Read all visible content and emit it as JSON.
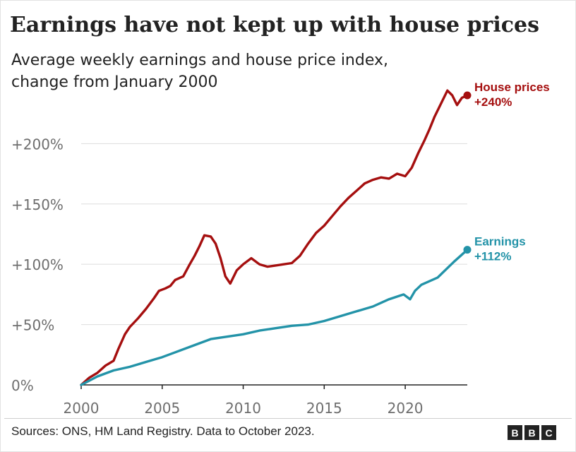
{
  "title": "Earnings have not kept up with house prices",
  "subtitle_line1": "Average weekly earnings and house price index,",
  "subtitle_line2": "change from January 2000",
  "source": "Sources: ONS, HM Land Registry. Data to October 2023.",
  "logo_letters": [
    "B",
    "B",
    "C"
  ],
  "colors": {
    "house": "#a50f0f",
    "earnings": "#2393a8",
    "grid": "#dddddd",
    "axis": "#222222",
    "tick": "#6e6e6e"
  },
  "chart_data": {
    "type": "line",
    "xlim": [
      2000,
      2023.83
    ],
    "ylim": [
      0,
      240
    ],
    "x_ticks": [
      2000,
      2005,
      2010,
      2015,
      2020
    ],
    "x_tick_labels": [
      "2000",
      "2005",
      "2010",
      "2015",
      "2020"
    ],
    "y_ticks": [
      0,
      50,
      100,
      150,
      200
    ],
    "y_tick_labels": [
      "0%",
      "+50%",
      "+100%",
      "+150%",
      "+200%"
    ],
    "grid": true,
    "series": [
      {
        "name": "House prices",
        "label_line1": "House prices",
        "label_line2": "+240%",
        "points": [
          [
            2000,
            0
          ],
          [
            2000.5,
            6
          ],
          [
            2001,
            10
          ],
          [
            2001.5,
            16
          ],
          [
            2002,
            20
          ],
          [
            2002.3,
            30
          ],
          [
            2002.7,
            42
          ],
          [
            2003,
            48
          ],
          [
            2003.5,
            55
          ],
          [
            2004,
            63
          ],
          [
            2004.5,
            72
          ],
          [
            2004.8,
            78
          ],
          [
            2005.2,
            80
          ],
          [
            2005.5,
            82
          ],
          [
            2005.8,
            87
          ],
          [
            2006.3,
            90
          ],
          [
            2006.7,
            100
          ],
          [
            2007,
            107
          ],
          [
            2007.3,
            115
          ],
          [
            2007.6,
            124
          ],
          [
            2008,
            123
          ],
          [
            2008.3,
            117
          ],
          [
            2008.6,
            105
          ],
          [
            2008.9,
            90
          ],
          [
            2009.2,
            84
          ],
          [
            2009.6,
            95
          ],
          [
            2010,
            100
          ],
          [
            2010.5,
            105
          ],
          [
            2011,
            100
          ],
          [
            2011.5,
            98
          ],
          [
            2012,
            99
          ],
          [
            2012.5,
            100
          ],
          [
            2013,
            101
          ],
          [
            2013.5,
            107
          ],
          [
            2014,
            117
          ],
          [
            2014.5,
            126
          ],
          [
            2015,
            132
          ],
          [
            2015.5,
            140
          ],
          [
            2016,
            148
          ],
          [
            2016.5,
            155
          ],
          [
            2017,
            161
          ],
          [
            2017.5,
            167
          ],
          [
            2018,
            170
          ],
          [
            2018.5,
            172
          ],
          [
            2019,
            171
          ],
          [
            2019.5,
            175
          ],
          [
            2020,
            173
          ],
          [
            2020.4,
            180
          ],
          [
            2020.8,
            192
          ],
          [
            2021.2,
            203
          ],
          [
            2021.5,
            212
          ],
          [
            2021.8,
            222
          ],
          [
            2022.2,
            233
          ],
          [
            2022.6,
            244
          ],
          [
            2022.9,
            240
          ],
          [
            2023.2,
            232
          ],
          [
            2023.5,
            238
          ],
          [
            2023.83,
            240
          ]
        ]
      },
      {
        "name": "Earnings",
        "label_line1": "Earnings",
        "label_line2": "+112%",
        "points": [
          [
            2000,
            0
          ],
          [
            2001,
            7
          ],
          [
            2002,
            12
          ],
          [
            2003,
            15
          ],
          [
            2004,
            19
          ],
          [
            2005,
            23
          ],
          [
            2006,
            28
          ],
          [
            2007,
            33
          ],
          [
            2008,
            38
          ],
          [
            2009,
            40
          ],
          [
            2010,
            42
          ],
          [
            2011,
            45
          ],
          [
            2012,
            47
          ],
          [
            2013,
            49
          ],
          [
            2014,
            50
          ],
          [
            2015,
            53
          ],
          [
            2016,
            57
          ],
          [
            2017,
            61
          ],
          [
            2018,
            65
          ],
          [
            2019,
            71
          ],
          [
            2019.9,
            75
          ],
          [
            2020.3,
            71
          ],
          [
            2020.6,
            78
          ],
          [
            2021,
            83
          ],
          [
            2022,
            89
          ],
          [
            2023,
            102
          ],
          [
            2023.83,
            112
          ]
        ]
      }
    ]
  }
}
